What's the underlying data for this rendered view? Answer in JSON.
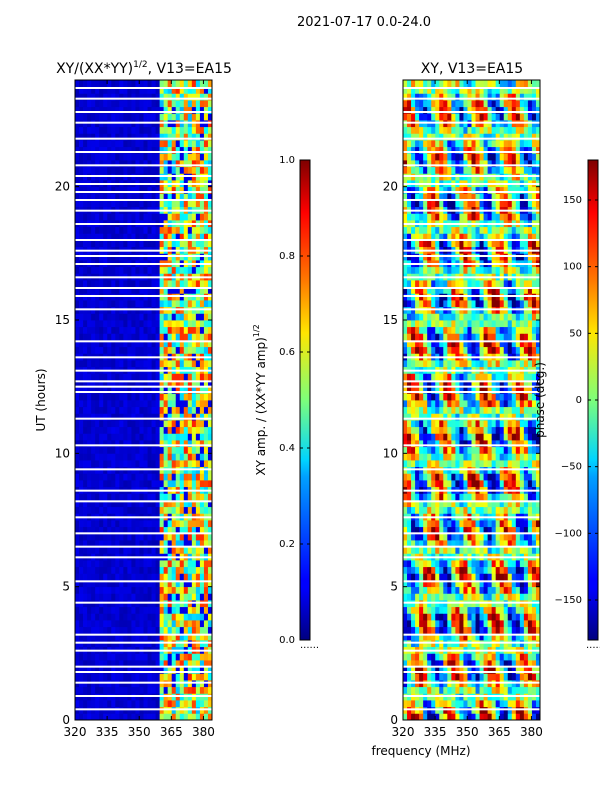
{
  "suptitle": "2021-07-17 0.0-24.0",
  "chart_data": [
    {
      "type": "heatmap",
      "title": "XY/(XX*YY)^1/2, V13=EA15",
      "title_main": "XY/(XX*YY)",
      "title_sup": "1/2",
      "title_suffix": ", V13=EA15",
      "xlabel": "frequency (MHz)",
      "ylabel": "UT (hours)",
      "xlim": [
        320,
        384
      ],
      "ylim": [
        0,
        24
      ],
      "xticks": [
        320,
        335,
        350,
        365,
        380
      ],
      "yticks": [
        0,
        5,
        10,
        15,
        20
      ],
      "colormap": "jet",
      "colorbar": {
        "label": "XY amp. / (XX*YY amp)^1/2",
        "label_main": "XY amp. / (XX*YY amp)",
        "label_sup": "1/2",
        "range": [
          0.0,
          1.0
        ],
        "ticks": [
          "0.0",
          "0.2",
          "0.4",
          "0.6",
          "0.8",
          "1.0"
        ]
      },
      "bright_band_mhz": [
        360,
        384
      ],
      "background_value": 0.05,
      "band_value_range": [
        0.3,
        0.85
      ]
    },
    {
      "type": "heatmap",
      "title": "XY, V13=EA15",
      "xlabel": "frequency (MHz)",
      "ylabel": "",
      "xlim": [
        320,
        384
      ],
      "ylim": [
        0,
        24
      ],
      "xticks": [
        320,
        335,
        350,
        365,
        380
      ],
      "yticks": [
        0,
        5,
        10,
        15,
        20
      ],
      "colormap": "jet",
      "colorbar": {
        "label": "phase (deg.)",
        "range": [
          -180,
          180
        ],
        "ticks": [
          "−150",
          "−100",
          "−50",
          "0",
          "50",
          "100",
          "150"
        ],
        "tick_values": [
          -150,
          -100,
          -50,
          0,
          50,
          100,
          150
        ]
      }
    }
  ],
  "data_gaps_ut_hours": [
    0.4,
    0.9,
    1.4,
    1.8,
    2.0,
    2.6,
    2.9,
    3.2,
    4.4,
    5.2,
    6.1,
    6.5,
    7.0,
    7.6,
    8.2,
    8.6,
    9.4,
    10.3,
    11.3,
    12.3,
    12.5,
    12.7,
    13.1,
    13.6,
    14.2,
    15.4,
    15.9,
    16.2,
    16.6,
    17.1,
    17.4,
    17.6,
    18.0,
    18.6,
    19.1,
    19.5,
    19.8,
    20.1,
    20.4,
    20.8,
    21.3,
    21.8,
    22.4,
    22.8,
    23.3,
    23.7
  ],
  "xlabel_shared": "frequency (MHz)",
  "cbar1_suffix": "......",
  "cbar2_suffix": "......"
}
